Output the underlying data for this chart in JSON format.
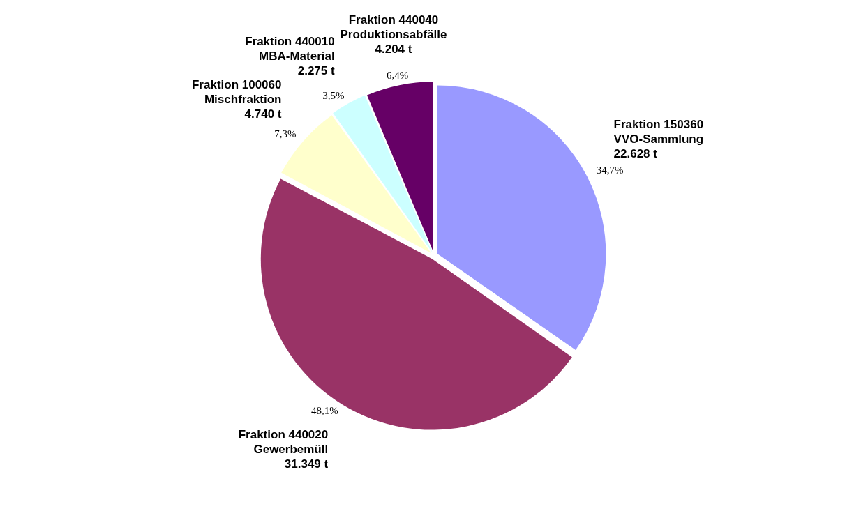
{
  "chart_data": {
    "type": "pie",
    "categories": [
      "Fraktion 150360\nVVO-Sammlung\n22.628 t",
      "Fraktion 440020\nGewerbemüll\n31.349 t",
      "Fraktion 100060\nMischfraktion\n4.740 t",
      "Fraktion 440010\nMBA-Material\n2.275 t",
      "Fraktion 440040\nProduktionsabfälle\n4.204 t"
    ],
    "values": [
      34.7,
      48.1,
      7.3,
      3.5,
      6.4
    ],
    "value_labels": [
      "34,7%",
      "48,1%",
      "7,3%",
      "3,5%",
      "6,4%"
    ],
    "colors": [
      "#9999ff",
      "#993366",
      "#ffffcc",
      "#ccffff",
      "#660066"
    ],
    "legend": false
  }
}
